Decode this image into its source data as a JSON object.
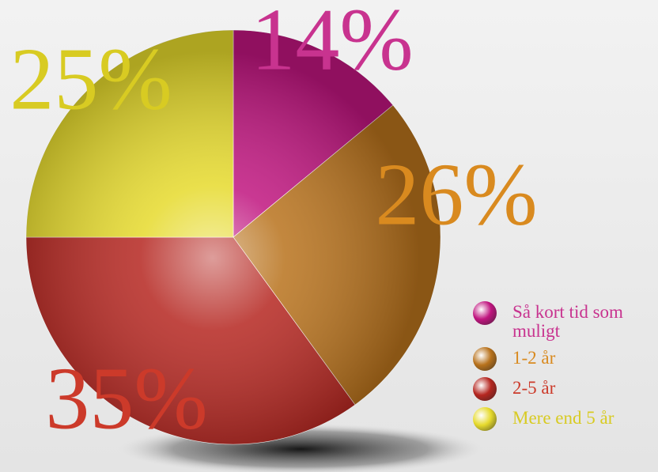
{
  "chart_data": {
    "type": "pie",
    "categories": [
      "Så kort tid som muligt",
      "1-2 år",
      "2-5 år",
      "Mere end 5 år"
    ],
    "values": [
      14,
      26,
      35,
      25
    ],
    "value_labels": [
      "14%",
      "26%",
      "35%",
      "25%"
    ],
    "colors": [
      "#c0157f",
      "#b8721c",
      "#b52620",
      "#e6da2c"
    ],
    "label_colors": [
      "#c8338f",
      "#d98a1f",
      "#cc3a2a",
      "#d8cb22"
    ],
    "legend": "bottom-right"
  }
}
